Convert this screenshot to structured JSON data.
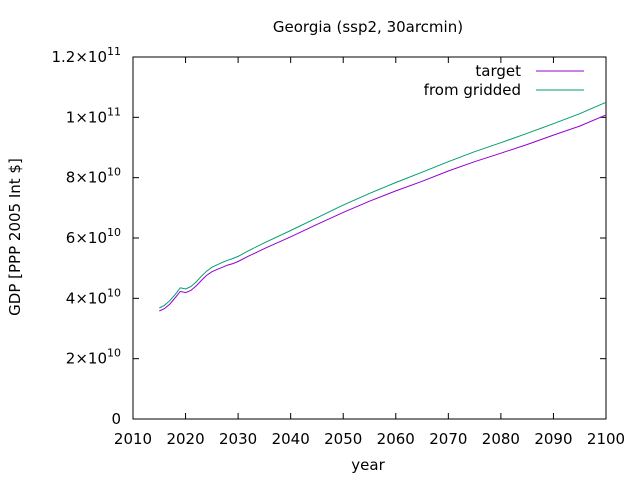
{
  "chart_data": {
    "type": "line",
    "title": "Georgia (ssp2, 30arcmin)",
    "xlabel": "year",
    "ylabel": "GDP [PPP 2005 Int $]",
    "xlim": [
      2010,
      2100
    ],
    "ylim": [
      0,
      120000000000
    ],
    "x_ticks": [
      2010,
      2020,
      2030,
      2040,
      2050,
      2060,
      2070,
      2080,
      2090,
      2100
    ],
    "y_ticks": [
      {
        "value": 0,
        "mantissa": "0",
        "exp": ""
      },
      {
        "value": 20000000000,
        "mantissa": "2×10",
        "exp": "10"
      },
      {
        "value": 40000000000,
        "mantissa": "4×10",
        "exp": "10"
      },
      {
        "value": 60000000000,
        "mantissa": "6×10",
        "exp": "10"
      },
      {
        "value": 80000000000,
        "mantissa": "8×10",
        "exp": "10"
      },
      {
        "value": 100000000000,
        "mantissa": "1×10",
        "exp": "11"
      },
      {
        "value": 120000000000,
        "mantissa": "1.2×10",
        "exp": "11"
      }
    ],
    "grid": false,
    "legend_position": "top-right",
    "series": [
      {
        "name": "target",
        "color": "#9400d3",
        "x": [
          2015,
          2016,
          2017,
          2018,
          2019,
          2020,
          2021,
          2022,
          2023,
          2024,
          2025,
          2026,
          2027,
          2028,
          2029,
          2030,
          2032,
          2035,
          2040,
          2045,
          2050,
          2055,
          2060,
          2065,
          2070,
          2075,
          2080,
          2085,
          2090,
          2095,
          2100
        ],
        "values": [
          35800000000,
          36600000000,
          38100000000,
          40100000000,
          42300000000,
          41900000000,
          42600000000,
          44100000000,
          45900000000,
          47600000000,
          48800000000,
          49600000000,
          50300000000,
          51000000000,
          51500000000,
          52200000000,
          54000000000,
          56500000000,
          60400000000,
          64500000000,
          68500000000,
          72200000000,
          75600000000,
          78800000000,
          82200000000,
          85300000000,
          88100000000,
          91000000000,
          94100000000,
          97100000000,
          100800000000
        ]
      },
      {
        "name": "from gridded",
        "color": "#009e73",
        "x": [
          2015,
          2016,
          2017,
          2018,
          2019,
          2020,
          2021,
          2022,
          2023,
          2024,
          2025,
          2026,
          2027,
          2028,
          2029,
          2030,
          2032,
          2035,
          2040,
          2045,
          2050,
          2055,
          2060,
          2065,
          2070,
          2075,
          2080,
          2085,
          2090,
          2095,
          2100
        ],
        "values": [
          36800000000,
          37700000000,
          39200000000,
          41200000000,
          43500000000,
          43100000000,
          43900000000,
          45400000000,
          47300000000,
          49000000000,
          50300000000,
          51100000000,
          51900000000,
          52600000000,
          53200000000,
          53900000000,
          55800000000,
          58400000000,
          62500000000,
          66700000000,
          70900000000,
          74800000000,
          78400000000,
          81800000000,
          85300000000,
          88600000000,
          91600000000,
          94700000000,
          97900000000,
          101200000000,
          105000000000
        ]
      }
    ]
  }
}
